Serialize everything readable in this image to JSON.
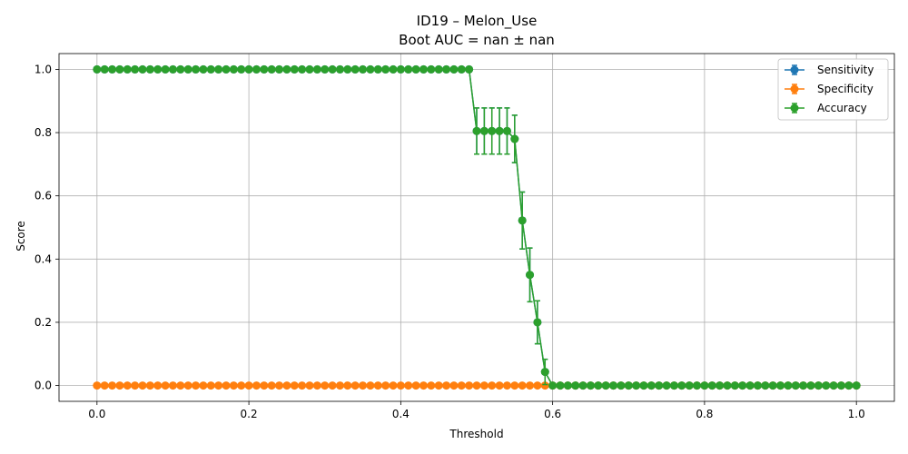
{
  "chart_data": {
    "type": "line",
    "title": "ID19 – Melon_Use",
    "subtitle": "Boot AUC = nan ± nan",
    "xlabel": "Threshold",
    "ylabel": "Score",
    "xlim": [
      -0.05,
      1.05
    ],
    "ylim": [
      -0.05,
      1.05
    ],
    "xticks": [
      0.0,
      0.2,
      0.4,
      0.6,
      0.8,
      1.0
    ],
    "xtick_labels": [
      "0.0",
      "0.2",
      "0.4",
      "0.6",
      "0.8",
      "1.0"
    ],
    "yticks": [
      0.0,
      0.2,
      0.4,
      0.6,
      0.8,
      1.0
    ],
    "ytick_labels": [
      "0.0",
      "0.2",
      "0.4",
      "0.6",
      "0.8",
      "1.0"
    ],
    "grid": true,
    "legend_position": "top-right",
    "x": [
      0.0,
      0.01,
      0.02,
      0.03,
      0.04,
      0.05,
      0.06,
      0.07,
      0.08,
      0.09,
      0.1,
      0.11,
      0.12,
      0.13,
      0.14,
      0.15,
      0.16,
      0.17,
      0.18,
      0.19,
      0.2,
      0.21,
      0.22,
      0.23,
      0.24,
      0.25,
      0.26,
      0.27,
      0.28,
      0.29,
      0.3,
      0.31,
      0.32,
      0.33,
      0.34,
      0.35,
      0.36,
      0.37,
      0.38,
      0.39,
      0.4,
      0.41,
      0.42,
      0.43,
      0.44,
      0.45,
      0.46,
      0.47,
      0.48,
      0.49,
      0.5,
      0.51,
      0.52,
      0.53,
      0.54,
      0.55,
      0.56,
      0.57,
      0.58,
      0.59,
      0.6,
      0.61,
      0.62,
      0.63,
      0.64,
      0.65,
      0.66,
      0.67,
      0.68,
      0.69,
      0.7,
      0.71,
      0.72,
      0.73,
      0.74,
      0.75,
      0.76,
      0.77,
      0.78,
      0.79,
      0.8,
      0.81,
      0.82,
      0.83,
      0.84,
      0.85,
      0.86,
      0.87,
      0.88,
      0.89,
      0.9,
      0.91,
      0.92,
      0.93,
      0.94,
      0.95,
      0.96,
      0.97,
      0.98,
      0.99,
      1.0
    ],
    "series": [
      {
        "name": "Sensitivity",
        "color": "#1f77b4",
        "values": [
          1,
          1,
          1,
          1,
          1,
          1,
          1,
          1,
          1,
          1,
          1,
          1,
          1,
          1,
          1,
          1,
          1,
          1,
          1,
          1,
          1,
          1,
          1,
          1,
          1,
          1,
          1,
          1,
          1,
          1,
          1,
          1,
          1,
          1,
          1,
          1,
          1,
          1,
          1,
          1,
          1,
          1,
          1,
          1,
          1,
          1,
          1,
          1,
          1,
          1,
          0.805,
          0.805,
          0.805,
          0.805,
          0.805,
          0.78,
          0.522,
          0.35,
          0.2,
          0.043,
          0,
          0,
          0,
          0,
          0,
          0,
          0,
          0,
          0,
          0,
          0,
          0,
          0,
          0,
          0,
          0,
          0,
          0,
          0,
          0,
          0,
          0,
          0,
          0,
          0,
          0,
          0,
          0,
          0,
          0,
          0,
          0,
          0,
          0,
          0,
          0,
          0,
          0,
          0,
          0,
          0
        ],
        "errors": [
          0,
          0,
          0,
          0,
          0,
          0,
          0,
          0,
          0,
          0,
          0,
          0,
          0,
          0,
          0,
          0,
          0,
          0,
          0,
          0,
          0,
          0,
          0,
          0,
          0,
          0,
          0,
          0,
          0,
          0,
          0,
          0,
          0,
          0,
          0,
          0,
          0,
          0,
          0,
          0,
          0,
          0,
          0,
          0,
          0,
          0,
          0,
          0,
          0,
          0,
          0.073,
          0.073,
          0.073,
          0.073,
          0.073,
          0.075,
          0.09,
          0.085,
          0.068,
          0.04,
          0,
          0,
          0,
          0,
          0,
          0,
          0,
          0,
          0,
          0,
          0,
          0,
          0,
          0,
          0,
          0,
          0,
          0,
          0,
          0,
          0,
          0,
          0,
          0,
          0,
          0,
          0,
          0,
          0,
          0,
          0,
          0,
          0,
          0,
          0,
          0,
          0,
          0,
          0,
          0,
          0
        ]
      },
      {
        "name": "Specificity",
        "color": "#ff7f0e",
        "values": [
          0,
          0,
          0,
          0,
          0,
          0,
          0,
          0,
          0,
          0,
          0,
          0,
          0,
          0,
          0,
          0,
          0,
          0,
          0,
          0,
          0,
          0,
          0,
          0,
          0,
          0,
          0,
          0,
          0,
          0,
          0,
          0,
          0,
          0,
          0,
          0,
          0,
          0,
          0,
          0,
          0,
          0,
          0,
          0,
          0,
          0,
          0,
          0,
          0,
          0,
          0,
          0,
          0,
          0,
          0,
          0,
          0,
          0,
          0,
          0,
          0,
          0,
          0,
          0,
          0,
          0,
          0,
          0,
          0,
          0,
          0,
          0,
          0,
          0,
          0,
          0,
          0,
          0,
          0,
          0,
          0,
          0,
          0,
          0,
          0,
          0,
          0,
          0,
          0,
          0,
          0,
          0,
          0,
          0,
          0,
          0,
          0,
          0,
          0,
          0,
          0
        ],
        "errors": [
          0,
          0,
          0,
          0,
          0,
          0,
          0,
          0,
          0,
          0,
          0,
          0,
          0,
          0,
          0,
          0,
          0,
          0,
          0,
          0,
          0,
          0,
          0,
          0,
          0,
          0,
          0,
          0,
          0,
          0,
          0,
          0,
          0,
          0,
          0,
          0,
          0,
          0,
          0,
          0,
          0,
          0,
          0,
          0,
          0,
          0,
          0,
          0,
          0,
          0,
          0,
          0,
          0,
          0,
          0,
          0,
          0,
          0,
          0,
          0,
          0,
          0,
          0,
          0,
          0,
          0,
          0,
          0,
          0,
          0,
          0,
          0,
          0,
          0,
          0,
          0,
          0,
          0,
          0,
          0,
          0,
          0,
          0,
          0,
          0,
          0,
          0,
          0,
          0,
          0,
          0,
          0,
          0,
          0,
          0,
          0,
          0,
          0,
          0,
          0,
          0
        ]
      },
      {
        "name": "Accuracy",
        "color": "#2ca02c",
        "values": [
          1,
          1,
          1,
          1,
          1,
          1,
          1,
          1,
          1,
          1,
          1,
          1,
          1,
          1,
          1,
          1,
          1,
          1,
          1,
          1,
          1,
          1,
          1,
          1,
          1,
          1,
          1,
          1,
          1,
          1,
          1,
          1,
          1,
          1,
          1,
          1,
          1,
          1,
          1,
          1,
          1,
          1,
          1,
          1,
          1,
          1,
          1,
          1,
          1,
          1,
          0.805,
          0.805,
          0.805,
          0.805,
          0.805,
          0.78,
          0.522,
          0.35,
          0.2,
          0.043,
          0,
          0,
          0,
          0,
          0,
          0,
          0,
          0,
          0,
          0,
          0,
          0,
          0,
          0,
          0,
          0,
          0,
          0,
          0,
          0,
          0,
          0,
          0,
          0,
          0,
          0,
          0,
          0,
          0,
          0,
          0,
          0,
          0,
          0,
          0,
          0,
          0,
          0,
          0,
          0,
          0
        ],
        "errors": [
          0,
          0,
          0,
          0,
          0,
          0,
          0,
          0,
          0,
          0,
          0,
          0,
          0,
          0,
          0,
          0,
          0,
          0,
          0,
          0,
          0,
          0,
          0,
          0,
          0,
          0,
          0,
          0,
          0,
          0,
          0,
          0,
          0,
          0,
          0,
          0,
          0,
          0,
          0,
          0,
          0,
          0,
          0,
          0,
          0,
          0,
          0,
          0,
          0,
          0,
          0.073,
          0.073,
          0.073,
          0.073,
          0.073,
          0.075,
          0.09,
          0.085,
          0.068,
          0.04,
          0,
          0,
          0,
          0,
          0,
          0,
          0,
          0,
          0,
          0,
          0,
          0,
          0,
          0,
          0,
          0,
          0,
          0,
          0,
          0,
          0,
          0,
          0,
          0,
          0,
          0,
          0,
          0,
          0,
          0,
          0,
          0,
          0,
          0,
          0,
          0,
          0,
          0,
          0,
          0,
          0
        ]
      }
    ]
  }
}
